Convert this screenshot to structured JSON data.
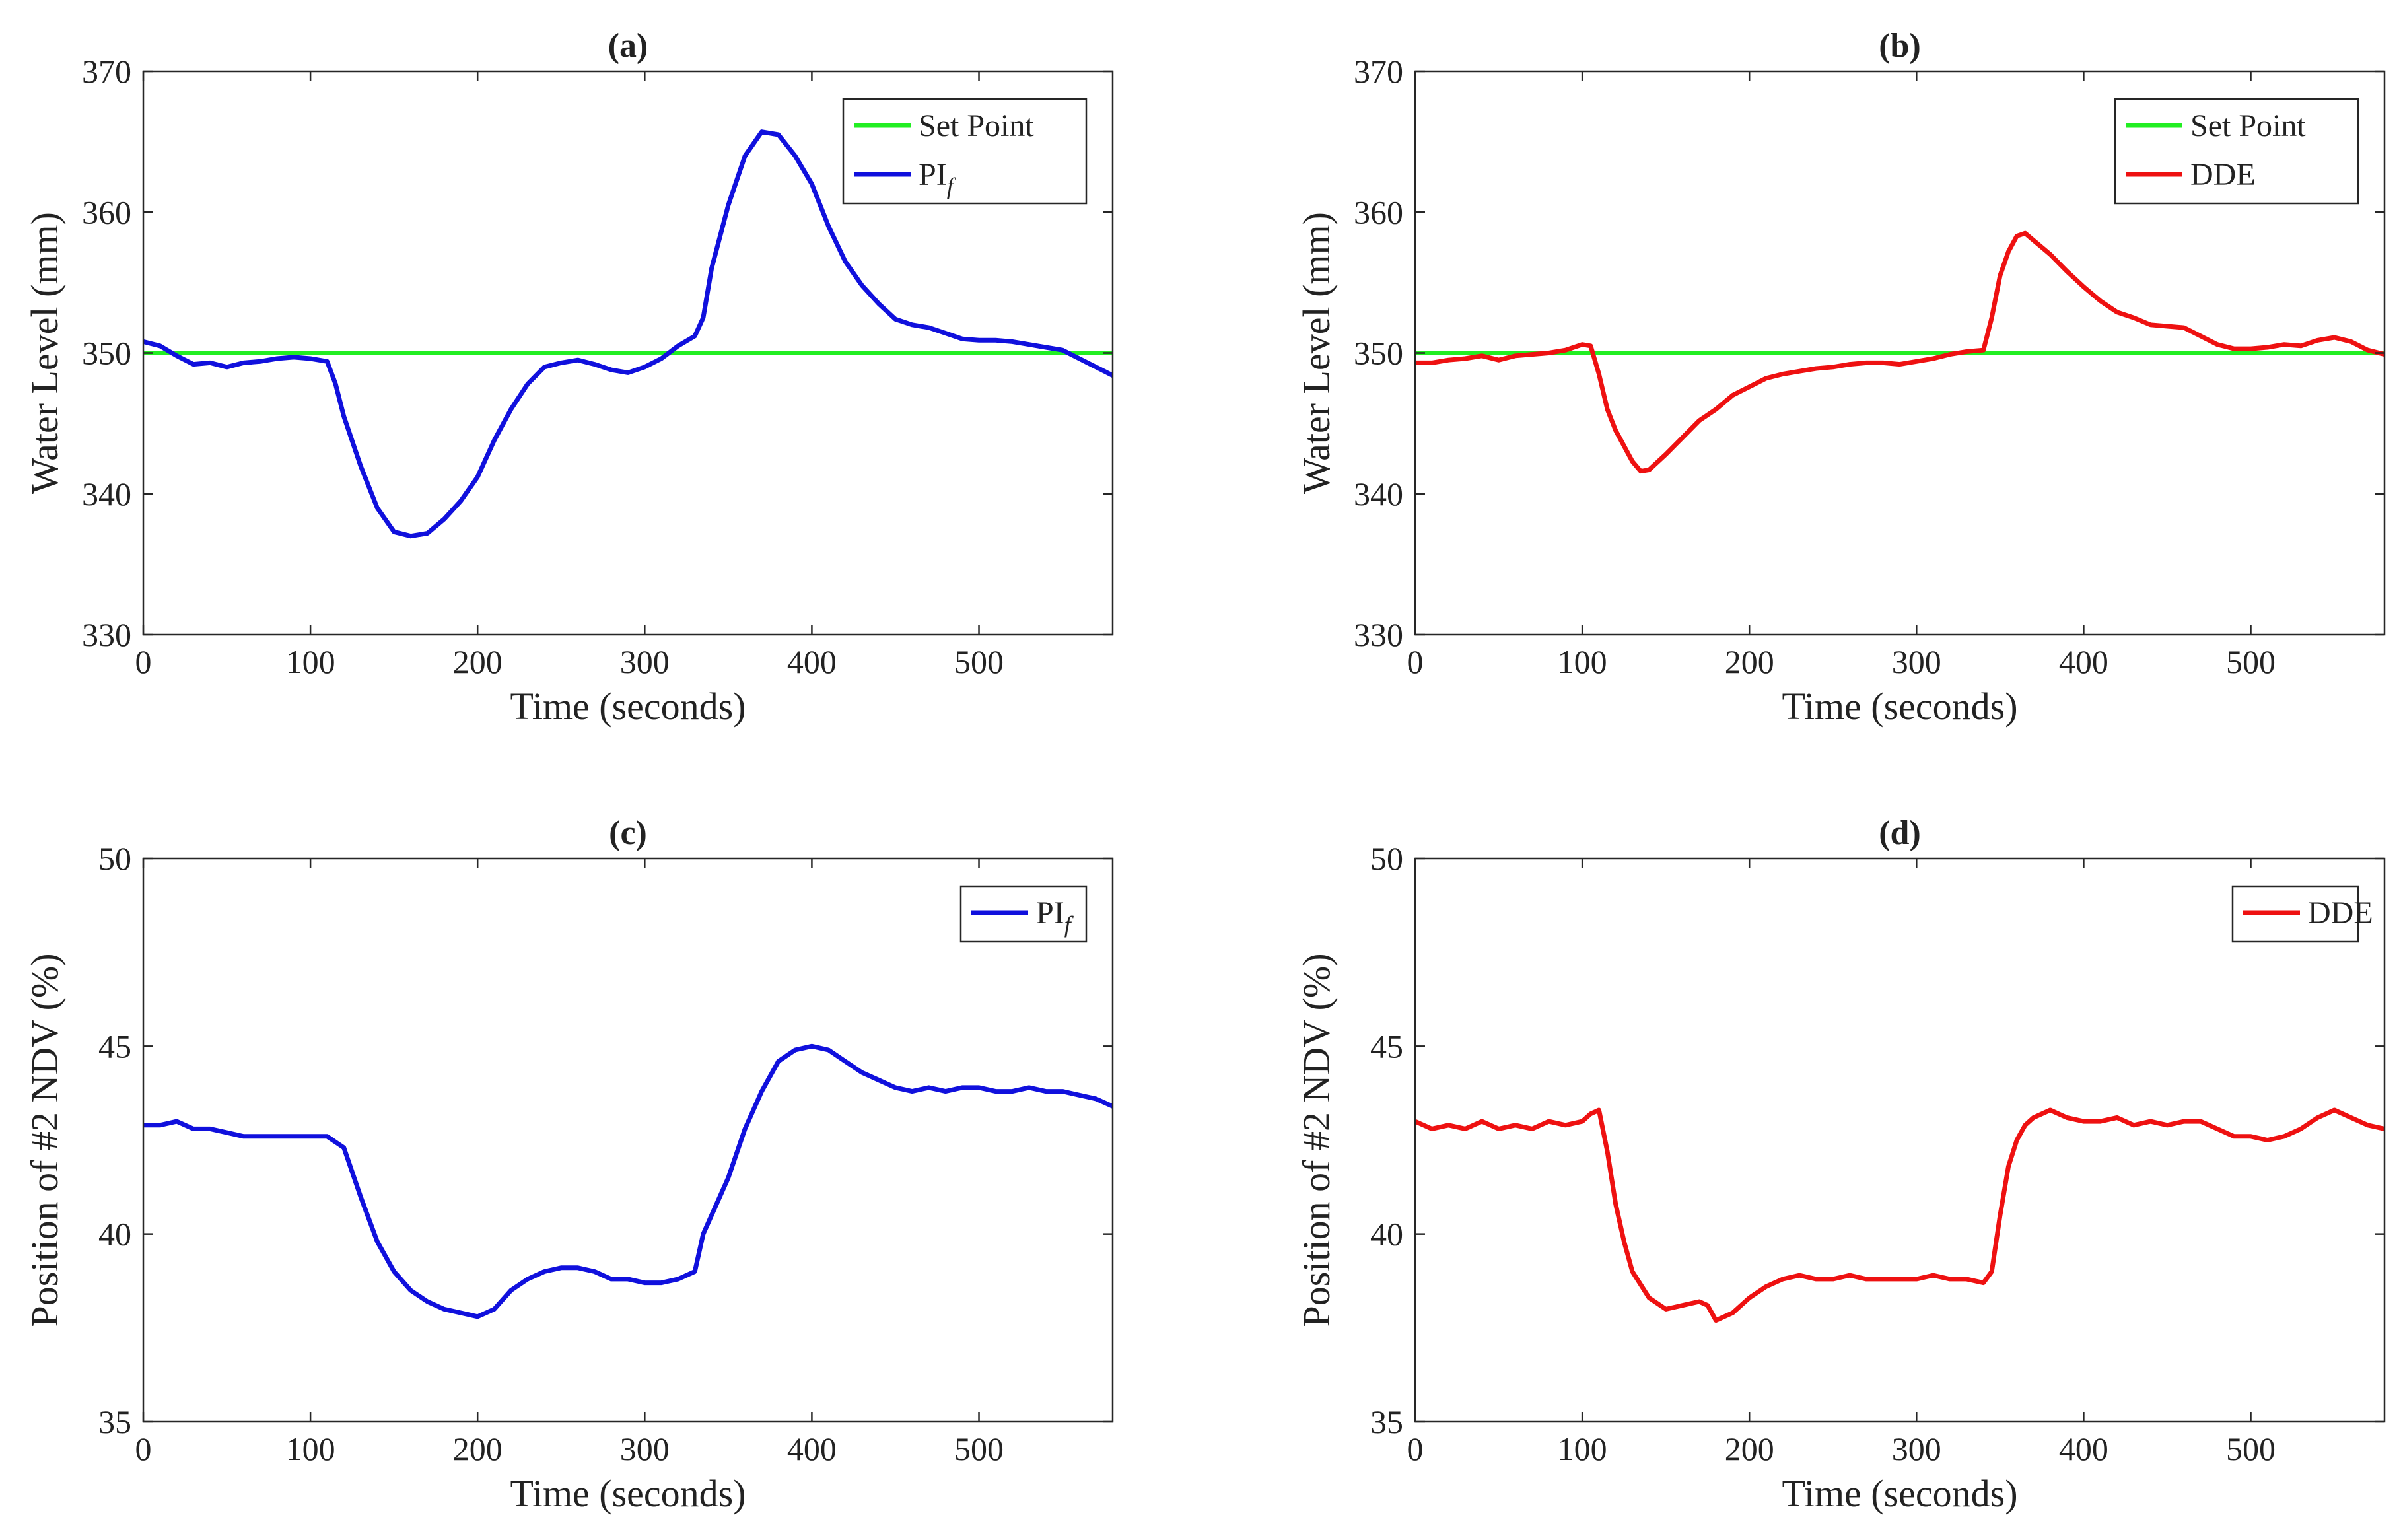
{
  "figure": {
    "panels_count": 4
  },
  "chart_data": [
    {
      "id": "a",
      "type": "line",
      "title": "(a)",
      "xlabel": "Time (seconds)",
      "ylabel": "Water Level (mm)",
      "xlim": [
        0,
        580
      ],
      "ylim": [
        330,
        370
      ],
      "xticks": [
        0,
        100,
        200,
        300,
        400,
        500
      ],
      "yticks": [
        330,
        340,
        350,
        360,
        370
      ],
      "grid": false,
      "legend_position": "top-right",
      "series": [
        {
          "name": "Set Point",
          "color": "#22ee22",
          "x": [
            0,
            580
          ],
          "y": [
            350,
            350
          ]
        },
        {
          "name": "PI",
          "name_sub": "f",
          "color": "#1010dd",
          "x": [
            0,
            10,
            20,
            30,
            40,
            50,
            60,
            70,
            80,
            90,
            100,
            110,
            115,
            120,
            130,
            140,
            150,
            160,
            170,
            180,
            190,
            200,
            210,
            220,
            230,
            240,
            250,
            260,
            270,
            280,
            290,
            300,
            310,
            320,
            330,
            335,
            340,
            350,
            360,
            370,
            380,
            390,
            400,
            410,
            420,
            430,
            440,
            450,
            460,
            470,
            480,
            490,
            500,
            510,
            520,
            530,
            540,
            550,
            560,
            570,
            580
          ],
          "y": [
            350.8,
            350.5,
            349.8,
            349.2,
            349.3,
            349.0,
            349.3,
            349.4,
            349.6,
            349.7,
            349.6,
            349.4,
            347.8,
            345.5,
            342.0,
            339.0,
            337.3,
            337.0,
            337.2,
            338.2,
            339.5,
            341.2,
            343.8,
            346.0,
            347.8,
            349.0,
            349.3,
            349.5,
            349.2,
            348.8,
            348.6,
            349.0,
            349.6,
            350.5,
            351.2,
            352.5,
            356.0,
            360.5,
            364.0,
            365.7,
            365.5,
            364.0,
            362.0,
            359.0,
            356.5,
            354.8,
            353.5,
            352.4,
            352.0,
            351.8,
            351.4,
            351.0,
            350.9,
            350.9,
            350.8,
            350.6,
            350.4,
            350.2,
            349.6,
            349.0,
            348.4
          ]
        }
      ]
    },
    {
      "id": "b",
      "type": "line",
      "title": "(b)",
      "xlabel": "Time (seconds)",
      "ylabel": "Water Level (mm)",
      "xlim": [
        0,
        580
      ],
      "ylim": [
        330,
        370
      ],
      "xticks": [
        0,
        100,
        200,
        300,
        400,
        500
      ],
      "yticks": [
        330,
        340,
        350,
        360,
        370
      ],
      "grid": false,
      "legend_position": "top-right",
      "series": [
        {
          "name": "Set Point",
          "color": "#22ee22",
          "x": [
            0,
            580
          ],
          "y": [
            350,
            350
          ]
        },
        {
          "name": "DDE",
          "color": "#ee1111",
          "x": [
            0,
            10,
            20,
            30,
            40,
            50,
            60,
            70,
            80,
            90,
            100,
            105,
            110,
            115,
            120,
            130,
            135,
            140,
            150,
            160,
            170,
            180,
            190,
            200,
            210,
            220,
            230,
            240,
            250,
            260,
            270,
            280,
            290,
            300,
            310,
            320,
            330,
            340,
            345,
            350,
            355,
            360,
            365,
            370,
            380,
            390,
            400,
            410,
            420,
            430,
            440,
            450,
            460,
            470,
            480,
            490,
            500,
            510,
            520,
            530,
            540,
            550,
            560,
            570,
            580
          ],
          "y": [
            349.3,
            349.3,
            349.5,
            349.6,
            349.8,
            349.5,
            349.8,
            349.9,
            350.0,
            350.2,
            350.6,
            350.5,
            348.5,
            346.0,
            344.5,
            342.3,
            341.6,
            341.7,
            342.8,
            344.0,
            345.2,
            346.0,
            347.0,
            347.6,
            348.2,
            348.5,
            348.7,
            348.9,
            349.0,
            349.2,
            349.3,
            349.3,
            349.2,
            349.4,
            349.6,
            349.9,
            350.1,
            350.2,
            352.5,
            355.5,
            357.2,
            358.3,
            358.5,
            358.0,
            357.0,
            355.8,
            354.7,
            353.7,
            352.9,
            352.5,
            352.0,
            351.9,
            351.8,
            351.2,
            350.6,
            350.3,
            350.3,
            350.4,
            350.6,
            350.5,
            350.9,
            351.1,
            350.8,
            350.2,
            349.9
          ]
        }
      ]
    },
    {
      "id": "c",
      "type": "line",
      "title": "(c)",
      "xlabel": "Time (seconds)",
      "ylabel": "Position of #2 NDV (%)",
      "xlim": [
        0,
        580
      ],
      "ylim": [
        35,
        50
      ],
      "xticks": [
        0,
        100,
        200,
        300,
        400,
        500
      ],
      "yticks": [
        35,
        40,
        45,
        50
      ],
      "grid": false,
      "legend_position": "top-right",
      "series": [
        {
          "name": "PI",
          "name_sub": "f",
          "color": "#1010dd",
          "x": [
            0,
            10,
            20,
            30,
            40,
            50,
            60,
            70,
            80,
            90,
            100,
            110,
            120,
            130,
            140,
            150,
            160,
            170,
            180,
            190,
            200,
            210,
            220,
            230,
            240,
            250,
            260,
            270,
            280,
            290,
            300,
            310,
            320,
            330,
            335,
            340,
            350,
            360,
            370,
            380,
            390,
            400,
            410,
            420,
            430,
            440,
            450,
            460,
            470,
            480,
            490,
            500,
            510,
            520,
            530,
            540,
            550,
            560,
            570,
            580
          ],
          "y": [
            42.9,
            42.9,
            43.0,
            42.8,
            42.8,
            42.7,
            42.6,
            42.6,
            42.6,
            42.6,
            42.6,
            42.6,
            42.3,
            41.0,
            39.8,
            39.0,
            38.5,
            38.2,
            38.0,
            37.9,
            37.8,
            38.0,
            38.5,
            38.8,
            39.0,
            39.1,
            39.1,
            39.0,
            38.8,
            38.8,
            38.7,
            38.7,
            38.8,
            39.0,
            40.0,
            40.5,
            41.5,
            42.8,
            43.8,
            44.6,
            44.9,
            45.0,
            44.9,
            44.6,
            44.3,
            44.1,
            43.9,
            43.8,
            43.9,
            43.8,
            43.9,
            43.9,
            43.8,
            43.8,
            43.9,
            43.8,
            43.8,
            43.7,
            43.6,
            43.4
          ]
        }
      ]
    },
    {
      "id": "d",
      "type": "line",
      "title": "(d)",
      "xlabel": "Time (seconds)",
      "ylabel": "Position of #2 NDV (%)",
      "xlim": [
        0,
        580
      ],
      "ylim": [
        35,
        50
      ],
      "xticks": [
        0,
        100,
        200,
        300,
        400,
        500
      ],
      "yticks": [
        35,
        40,
        45,
        50
      ],
      "grid": false,
      "legend_position": "top-right",
      "series": [
        {
          "name": "DDE",
          "color": "#ee1111",
          "x": [
            0,
            10,
            20,
            30,
            40,
            50,
            60,
            70,
            80,
            90,
            100,
            105,
            110,
            115,
            120,
            125,
            130,
            140,
            150,
            160,
            170,
            175,
            180,
            190,
            200,
            210,
            220,
            230,
            240,
            250,
            260,
            270,
            280,
            290,
            300,
            310,
            320,
            330,
            340,
            345,
            350,
            355,
            360,
            365,
            370,
            380,
            390,
            400,
            410,
            420,
            430,
            440,
            450,
            460,
            470,
            480,
            490,
            500,
            510,
            520,
            530,
            540,
            550,
            560,
            570,
            580
          ],
          "y": [
            43.0,
            42.8,
            42.9,
            42.8,
            43.0,
            42.8,
            42.9,
            42.8,
            43.0,
            42.9,
            43.0,
            43.2,
            43.3,
            42.2,
            40.8,
            39.8,
            39.0,
            38.3,
            38.0,
            38.1,
            38.2,
            38.1,
            37.7,
            37.9,
            38.3,
            38.6,
            38.8,
            38.9,
            38.8,
            38.8,
            38.9,
            38.8,
            38.8,
            38.8,
            38.8,
            38.9,
            38.8,
            38.8,
            38.7,
            39.0,
            40.5,
            41.8,
            42.5,
            42.9,
            43.1,
            43.3,
            43.1,
            43.0,
            43.0,
            43.1,
            42.9,
            43.0,
            42.9,
            43.0,
            43.0,
            42.8,
            42.6,
            42.6,
            42.5,
            42.6,
            42.8,
            43.1,
            43.3,
            43.1,
            42.9,
            42.8
          ]
        }
      ]
    }
  ]
}
